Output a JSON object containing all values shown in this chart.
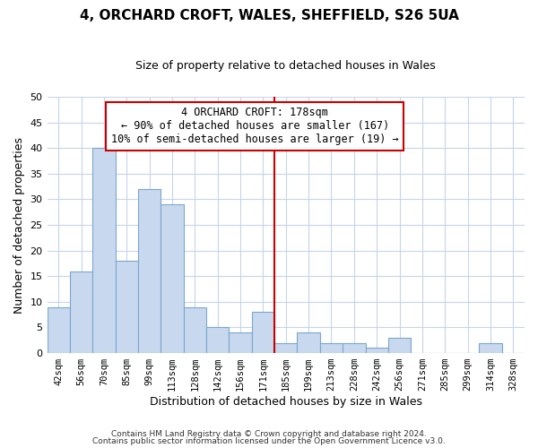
{
  "title": "4, ORCHARD CROFT, WALES, SHEFFIELD, S26 5UA",
  "subtitle": "Size of property relative to detached houses in Wales",
  "xlabel": "Distribution of detached houses by size in Wales",
  "ylabel": "Number of detached properties",
  "bin_labels": [
    "42sqm",
    "56sqm",
    "70sqm",
    "85sqm",
    "99sqm",
    "113sqm",
    "128sqm",
    "142sqm",
    "156sqm",
    "171sqm",
    "185sqm",
    "199sqm",
    "213sqm",
    "228sqm",
    "242sqm",
    "256sqm",
    "271sqm",
    "285sqm",
    "299sqm",
    "314sqm",
    "328sqm"
  ],
  "bar_heights": [
    9,
    16,
    40,
    18,
    32,
    29,
    9,
    5,
    4,
    8,
    2,
    4,
    2,
    2,
    1,
    3,
    0,
    0,
    0,
    2,
    0
  ],
  "bar_color": "#c8d8ee",
  "bar_edge_color": "#7ba7cc",
  "vline_color": "#cc0000",
  "vline_index": 10,
  "ylim": [
    0,
    50
  ],
  "yticks": [
    0,
    5,
    10,
    15,
    20,
    25,
    30,
    35,
    40,
    45,
    50
  ],
  "annotation_title": "4 ORCHARD CROFT: 178sqm",
  "annotation_line1": "← 90% of detached houses are smaller (167)",
  "annotation_line2": "10% of semi-detached houses are larger (19) →",
  "annotation_box_color": "#ffffff",
  "annotation_box_edge_color": "#cc0000",
  "footer_line1": "Contains HM Land Registry data © Crown copyright and database right 2024.",
  "footer_line2": "Contains public sector information licensed under the Open Government Licence v3.0.",
  "background_color": "#ffffff",
  "grid_color": "#c8d4e8",
  "title_fontsize": 11,
  "subtitle_fontsize": 9,
  "ylabel_fontsize": 9,
  "xlabel_fontsize": 9,
  "tick_fontsize": 7.5,
  "annotation_fontsize": 8.5,
  "footer_fontsize": 6.5
}
